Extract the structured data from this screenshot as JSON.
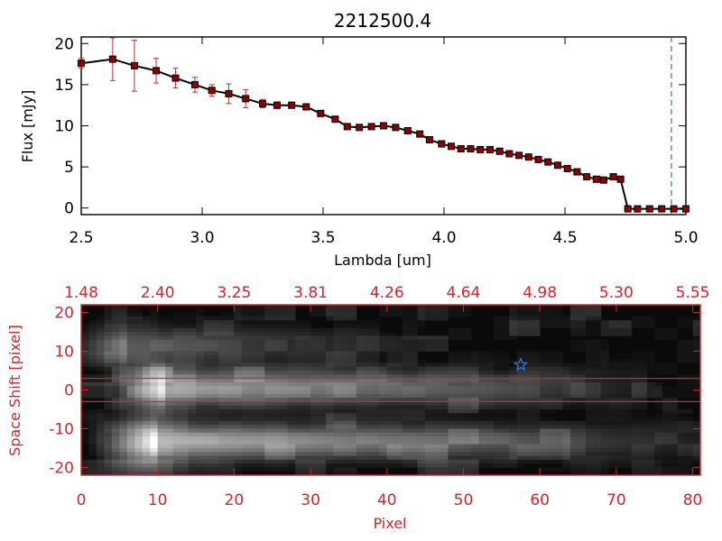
{
  "chart_data": [
    {
      "type": "line",
      "title": "2212500.4",
      "xlabel": "Lambda [um]",
      "ylabel": "Flux [mJy]",
      "xlim": [
        2.5,
        5.0
      ],
      "ylim": [
        -0.8,
        20.8
      ],
      "x_ticks": [
        "2.5",
        "3.0",
        "3.5",
        "4.0",
        "4.5",
        "5.0"
      ],
      "y_ticks": [
        "0",
        "5",
        "10",
        "15",
        "20"
      ],
      "series": [
        {
          "x": [
            2.5,
            2.63,
            2.72,
            2.81,
            2.89,
            2.97,
            3.04,
            3.11,
            3.18,
            3.25,
            3.31,
            3.37,
            3.43,
            3.49,
            3.55,
            3.6,
            3.65,
            3.7,
            3.75,
            3.8,
            3.85,
            3.9,
            3.94,
            3.99,
            4.03,
            4.07,
            4.11,
            4.15,
            4.19,
            4.23,
            4.27,
            4.31,
            4.35,
            4.39,
            4.43,
            4.47,
            4.51,
            4.55,
            4.59,
            4.63,
            4.66,
            4.7,
            4.73,
            4.76,
            4.8,
            4.85,
            4.9,
            4.95,
            5.0
          ],
          "y": [
            17.6,
            18.1,
            17.3,
            16.7,
            15.8,
            15.0,
            14.3,
            13.9,
            13.3,
            12.7,
            12.5,
            12.5,
            12.3,
            11.5,
            10.8,
            9.9,
            9.8,
            9.9,
            10.0,
            9.8,
            9.4,
            9.0,
            8.3,
            7.8,
            7.5,
            7.2,
            7.2,
            7.1,
            7.1,
            6.9,
            6.6,
            6.4,
            6.2,
            5.9,
            5.6,
            5.2,
            4.8,
            4.4,
            3.8,
            3.5,
            3.4,
            3.8,
            3.5,
            -0.1,
            -0.1,
            -0.1,
            -0.1,
            -0.1,
            -0.1
          ],
          "yerr": [
            0.6,
            2.6,
            3.1,
            1.5,
            1.2,
            0.9,
            0.7,
            1.2,
            1.1,
            0.5,
            0.4,
            0.3,
            0.3,
            0.3,
            0.3,
            0.2,
            0.2,
            0.2,
            0.2,
            0.2,
            0.2,
            0.2,
            0.2,
            0.2,
            0.2,
            0.2,
            0.2,
            0.2,
            0.2,
            0.2,
            0.2,
            0.2,
            0.2,
            0.2,
            0.2,
            0.2,
            0.2,
            0.2,
            0.2,
            0.2,
            0.2,
            0.2,
            0.3,
            0.0,
            0.0,
            0.0,
            0.0,
            0.0,
            0.0
          ],
          "color": "#000000",
          "marker_color": "#8b0000",
          "errorbar_color": "#d0262c"
        }
      ],
      "vlines": [
        {
          "x": 4.94,
          "color": "#2e8b57",
          "style": "dashed"
        }
      ],
      "grid": false
    },
    {
      "type": "heatmap",
      "xlabel": "Pixel",
      "ylabel": "Space Shift [pixel]",
      "xlim": [
        0,
        81
      ],
      "ylim": [
        -22,
        22
      ],
      "x_ticks": [
        "0",
        "10",
        "20",
        "30",
        "40",
        "50",
        "60",
        "70",
        "80"
      ],
      "y_ticks": [
        "-20",
        "-10",
        "0",
        "10",
        "20"
      ],
      "top_axis_ticks": [
        "1.48",
        "2.40",
        "3.25",
        "3.81",
        "4.26",
        "4.64",
        "4.98",
        "5.30",
        "5.55"
      ],
      "colormap": "grayscale",
      "bands": [
        {
          "y_center": 0.5,
          "x_start": 5,
          "x_end": 70,
          "peak_x": 11,
          "intensity": 0.95
        },
        {
          "y_center": -13.5,
          "x_start": 3,
          "x_end": 78,
          "peak_x": 10,
          "intensity": 1.0
        },
        {
          "y_center": 11.5,
          "x_start": 0,
          "x_end": 40,
          "peak_x": 6,
          "intensity": 0.5
        }
      ],
      "extraction_lines": [
        {
          "y": 3.0
        },
        {
          "y": -3.0
        }
      ],
      "marker": {
        "type": "star",
        "x": 57.5,
        "y": 6.5,
        "color": "#3a78d8"
      },
      "axis_color": "#d0262c",
      "grid": false
    }
  ]
}
